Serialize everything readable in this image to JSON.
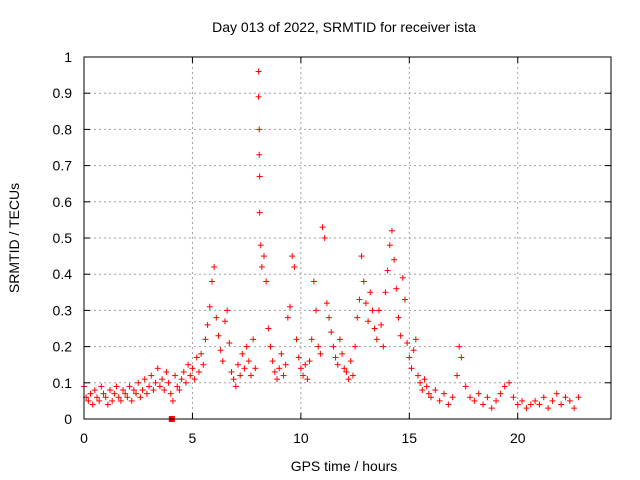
{
  "chart_data": {
    "type": "scatter",
    "title": "Day 013 of 2022, SRMTID for receiver ista",
    "xlabel": "GPS time / hours",
    "ylabel": "SRMTID / TECUs",
    "xlim": [
      0,
      24.3
    ],
    "ylim": [
      0,
      1
    ],
    "xticks": [
      0,
      5,
      10,
      15,
      20
    ],
    "xtick_labels": [
      "0",
      "5",
      "10",
      "15",
      "20"
    ],
    "yticks": [
      0,
      0.1,
      0.2,
      0.3,
      0.4,
      0.5,
      0.6,
      0.7,
      0.8,
      0.9,
      1
    ],
    "ytick_labels": [
      "0",
      "0.1",
      "0.2",
      "0.3",
      "0.4",
      "0.5",
      "0.6",
      "0.7",
      "0.8",
      "0.9",
      "1"
    ],
    "grid": true,
    "marker": "+",
    "series_color": "#ff0000",
    "series": [
      {
        "name": "SRMTID",
        "points": [
          [
            0.0,
            0.09
          ],
          [
            0.1,
            0.06
          ],
          [
            0.2,
            0.05
          ],
          [
            0.3,
            0.07
          ],
          [
            0.4,
            0.04
          ],
          [
            0.5,
            0.08
          ],
          [
            0.6,
            0.06
          ],
          [
            0.7,
            0.05
          ],
          [
            0.8,
            0.09
          ],
          [
            0.9,
            0.07
          ],
          [
            1.0,
            0.06
          ],
          [
            1.1,
            0.04
          ],
          [
            1.2,
            0.08
          ],
          [
            1.3,
            0.05
          ],
          [
            1.4,
            0.07
          ],
          [
            1.5,
            0.09
          ],
          [
            1.6,
            0.06
          ],
          [
            1.7,
            0.05
          ],
          [
            1.8,
            0.08
          ],
          [
            1.9,
            0.07
          ],
          [
            2.0,
            0.06
          ],
          [
            2.1,
            0.09
          ],
          [
            2.2,
            0.05
          ],
          [
            2.3,
            0.08
          ],
          [
            2.4,
            0.07
          ],
          [
            2.5,
            0.1
          ],
          [
            2.6,
            0.06
          ],
          [
            2.7,
            0.08
          ],
          [
            2.8,
            0.11
          ],
          [
            2.9,
            0.07
          ],
          [
            3.0,
            0.09
          ],
          [
            3.1,
            0.12
          ],
          [
            3.2,
            0.08
          ],
          [
            3.3,
            0.1
          ],
          [
            3.4,
            0.14
          ],
          [
            3.5,
            0.09
          ],
          [
            3.6,
            0.11
          ],
          [
            3.7,
            0.08
          ],
          [
            3.8,
            0.13
          ],
          [
            3.9,
            0.1
          ],
          [
            4.0,
            0.07
          ],
          [
            4.1,
            0.05
          ],
          [
            4.2,
            0.12
          ],
          [
            4.3,
            0.09
          ],
          [
            4.4,
            0.08
          ],
          [
            4.5,
            0.11
          ],
          [
            4.6,
            0.13
          ],
          [
            4.7,
            0.1
          ],
          [
            4.8,
            0.15
          ],
          [
            4.9,
            0.12
          ],
          [
            5.0,
            0.14
          ],
          [
            5.1,
            0.11
          ],
          [
            5.2,
            0.17
          ],
          [
            5.3,
            0.13
          ],
          [
            5.4,
            0.18
          ],
          [
            5.5,
            0.15
          ],
          [
            5.6,
            0.22
          ],
          [
            5.7,
            0.26
          ],
          [
            5.8,
            0.31
          ],
          [
            5.9,
            0.38
          ],
          [
            6.0,
            0.42
          ],
          [
            6.1,
            0.28
          ],
          [
            6.2,
            0.23
          ],
          [
            6.3,
            0.19
          ],
          [
            6.4,
            0.16
          ],
          [
            6.5,
            0.27
          ],
          [
            6.6,
            0.3
          ],
          [
            6.7,
            0.21
          ],
          [
            6.8,
            0.13
          ],
          [
            6.9,
            0.11
          ],
          [
            7.0,
            0.09
          ],
          [
            7.1,
            0.15
          ],
          [
            7.2,
            0.12
          ],
          [
            7.3,
            0.18
          ],
          [
            7.4,
            0.14
          ],
          [
            7.5,
            0.2
          ],
          [
            7.6,
            0.16
          ],
          [
            7.7,
            0.12
          ],
          [
            7.8,
            0.22
          ],
          [
            7.9,
            0.14
          ],
          [
            8.05,
            0.96
          ],
          [
            8.05,
            0.89
          ],
          [
            8.08,
            0.8
          ],
          [
            8.08,
            0.73
          ],
          [
            8.1,
            0.67
          ],
          [
            8.1,
            0.57
          ],
          [
            8.15,
            0.48
          ],
          [
            8.2,
            0.42
          ],
          [
            8.3,
            0.45
          ],
          [
            8.4,
            0.38
          ],
          [
            8.5,
            0.25
          ],
          [
            8.6,
            0.2
          ],
          [
            8.7,
            0.16
          ],
          [
            8.8,
            0.13
          ],
          [
            8.9,
            0.11
          ],
          [
            9.0,
            0.14
          ],
          [
            9.1,
            0.18
          ],
          [
            9.2,
            0.12
          ],
          [
            9.3,
            0.15
          ],
          [
            9.4,
            0.28
          ],
          [
            9.5,
            0.31
          ],
          [
            9.6,
            0.45
          ],
          [
            9.7,
            0.42
          ],
          [
            9.8,
            0.22
          ],
          [
            9.9,
            0.17
          ],
          [
            10.0,
            0.14
          ],
          [
            10.1,
            0.12
          ],
          [
            10.2,
            0.15
          ],
          [
            10.3,
            0.11
          ],
          [
            10.4,
            0.16
          ],
          [
            10.5,
            0.22
          ],
          [
            10.6,
            0.38
          ],
          [
            10.7,
            0.3
          ],
          [
            10.8,
            0.2
          ],
          [
            10.9,
            0.18
          ],
          [
            11.0,
            0.53
          ],
          [
            11.1,
            0.5
          ],
          [
            11.2,
            0.32
          ],
          [
            11.3,
            0.28
          ],
          [
            11.4,
            0.24
          ],
          [
            11.5,
            0.2
          ],
          [
            11.6,
            0.17
          ],
          [
            11.7,
            0.15
          ],
          [
            11.8,
            0.22
          ],
          [
            11.9,
            0.18
          ],
          [
            12.0,
            0.14
          ],
          [
            12.1,
            0.13
          ],
          [
            12.2,
            0.11
          ],
          [
            12.3,
            0.16
          ],
          [
            12.4,
            0.12
          ],
          [
            12.5,
            0.2
          ],
          [
            12.6,
            0.28
          ],
          [
            12.7,
            0.33
          ],
          [
            12.8,
            0.45
          ],
          [
            12.9,
            0.38
          ],
          [
            13.0,
            0.32
          ],
          [
            13.1,
            0.27
          ],
          [
            13.2,
            0.35
          ],
          [
            13.3,
            0.3
          ],
          [
            13.4,
            0.25
          ],
          [
            13.5,
            0.22
          ],
          [
            13.6,
            0.3
          ],
          [
            13.7,
            0.26
          ],
          [
            13.8,
            0.2
          ],
          [
            13.9,
            0.35
          ],
          [
            14.0,
            0.41
          ],
          [
            14.1,
            0.48
          ],
          [
            14.2,
            0.52
          ],
          [
            14.3,
            0.44
          ],
          [
            14.4,
            0.36
          ],
          [
            14.5,
            0.28
          ],
          [
            14.6,
            0.23
          ],
          [
            14.7,
            0.39
          ],
          [
            14.8,
            0.33
          ],
          [
            14.9,
            0.21
          ],
          [
            15.0,
            0.17
          ],
          [
            15.1,
            0.14
          ],
          [
            15.2,
            0.19
          ],
          [
            15.3,
            0.22
          ],
          [
            15.4,
            0.12
          ],
          [
            15.5,
            0.1
          ],
          [
            15.6,
            0.08
          ],
          [
            15.7,
            0.11
          ],
          [
            15.8,
            0.09
          ],
          [
            15.9,
            0.07
          ],
          [
            16.0,
            0.06
          ],
          [
            16.2,
            0.08
          ],
          [
            16.4,
            0.05
          ],
          [
            16.6,
            0.07
          ],
          [
            16.8,
            0.04
          ],
          [
            17.0,
            0.06
          ],
          [
            17.2,
            0.12
          ],
          [
            17.3,
            0.2
          ],
          [
            17.4,
            0.17
          ],
          [
            17.6,
            0.09
          ],
          [
            17.8,
            0.06
          ],
          [
            18.0,
            0.05
          ],
          [
            18.2,
            0.07
          ],
          [
            18.4,
            0.04
          ],
          [
            18.6,
            0.06
          ],
          [
            18.8,
            0.03
          ],
          [
            19.0,
            0.05
          ],
          [
            19.2,
            0.07
          ],
          [
            19.4,
            0.09
          ],
          [
            19.6,
            0.1
          ],
          [
            19.8,
            0.06
          ],
          [
            20.0,
            0.04
          ],
          [
            20.2,
            0.05
          ],
          [
            20.4,
            0.03
          ],
          [
            20.6,
            0.04
          ],
          [
            20.8,
            0.05
          ],
          [
            21.0,
            0.04
          ],
          [
            21.2,
            0.06
          ],
          [
            21.4,
            0.03
          ],
          [
            21.6,
            0.05
          ],
          [
            21.8,
            0.07
          ],
          [
            22.0,
            0.04
          ],
          [
            22.2,
            0.06
          ],
          [
            22.4,
            0.05
          ],
          [
            22.6,
            0.03
          ],
          [
            22.8,
            0.06
          ]
        ]
      }
    ],
    "other_marks": [
      {
        "name": "square-marker",
        "x": 4.05,
        "y": 0.0
      }
    ]
  }
}
